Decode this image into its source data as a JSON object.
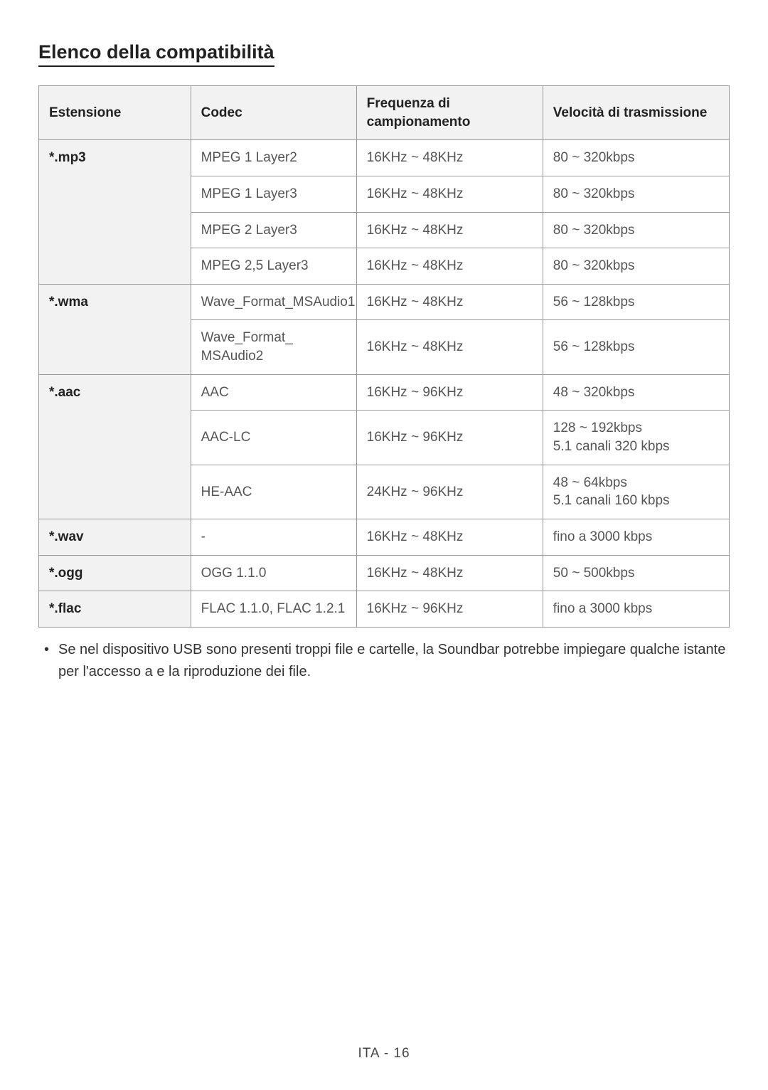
{
  "title": "Elenco della compatibilità",
  "headers": {
    "ext": "Estensione",
    "codec": "Codec",
    "freq": "Frequenza di campionamento",
    "bitrate": "Velocità di trasmissione"
  },
  "rows": [
    {
      "ext": "*.mp3",
      "codec": "MPEG 1 Layer2",
      "freq": "16KHz ~ 48KHz",
      "bitrate": "80 ~ 320kbps",
      "extRowspan": 4
    },
    {
      "codec": "MPEG 1 Layer3",
      "freq": "16KHz ~ 48KHz",
      "bitrate": "80 ~ 320kbps"
    },
    {
      "codec": "MPEG 2 Layer3",
      "freq": "16KHz ~ 48KHz",
      "bitrate": "80 ~ 320kbps"
    },
    {
      "codec": "MPEG 2,5 Layer3",
      "freq": "16KHz ~ 48KHz",
      "bitrate": "80 ~ 320kbps"
    },
    {
      "ext": "*.wma",
      "codec": "Wave_Format_MSAudio1",
      "freq": "16KHz ~ 48KHz",
      "bitrate": "56 ~ 128kbps",
      "extRowspan": 2
    },
    {
      "codec": "Wave_Format_\nMSAudio2",
      "freq": "16KHz ~ 48KHz",
      "bitrate": "56 ~ 128kbps"
    },
    {
      "ext": "*.aac",
      "codec": "AAC",
      "freq": "16KHz ~ 96KHz",
      "bitrate": "48 ~ 320kbps",
      "extRowspan": 3
    },
    {
      "codec": "AAC-LC",
      "freq": "16KHz ~ 96KHz",
      "bitrate": "128 ~ 192kbps\n5.1 canali 320 kbps"
    },
    {
      "codec": "HE-AAC",
      "freq": "24KHz ~ 96KHz",
      "bitrate": "48 ~ 64kbps\n5.1 canali 160 kbps"
    },
    {
      "ext": "*.wav",
      "codec": "-",
      "freq": "16KHz ~ 48KHz",
      "bitrate": "fino a 3000 kbps",
      "extRowspan": 1
    },
    {
      "ext": "*.ogg",
      "codec": "OGG 1.1.0",
      "freq": "16KHz ~ 48KHz",
      "bitrate": "50 ~ 500kbps",
      "extRowspan": 1
    },
    {
      "ext": "*.flac",
      "codec": "FLAC 1.1.0, FLAC 1.2.1",
      "freq": "16KHz ~ 96KHz",
      "bitrate": "fino a 3000 kbps",
      "extRowspan": 1
    }
  ],
  "note": "Se nel dispositivo USB sono presenti troppi file e cartelle, la Soundbar potrebbe impiegare qualche istante per l'accesso a e la riproduzione dei file.",
  "footer": "ITA - 16"
}
